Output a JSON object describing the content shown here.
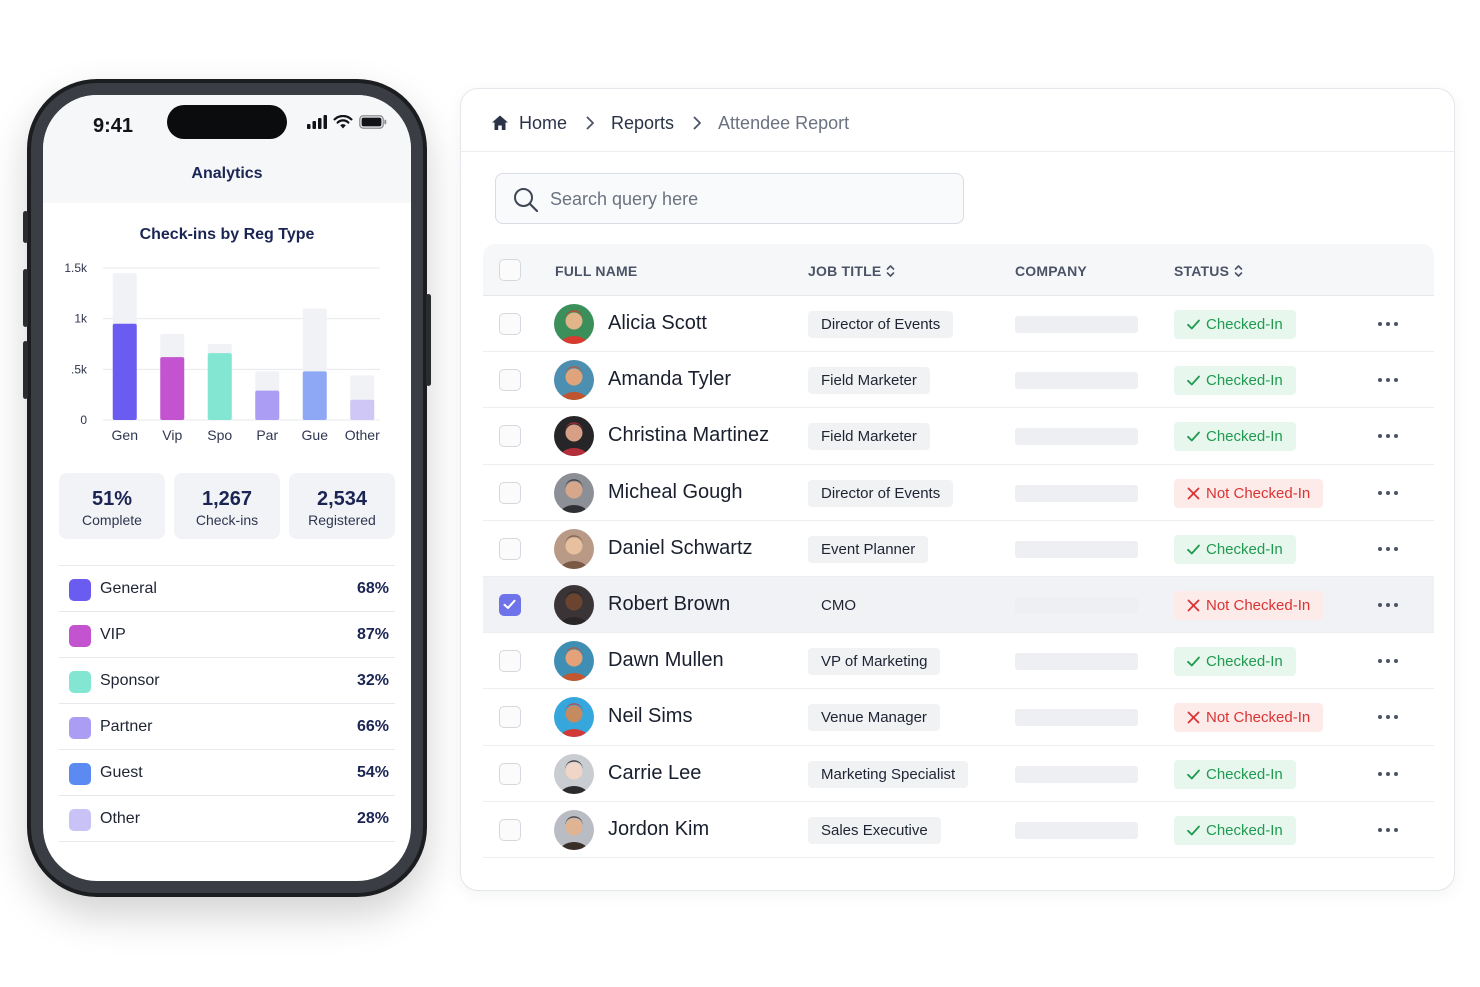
{
  "phone": {
    "status_bar": {
      "time": "9:41",
      "icons": [
        "cellular-signal-icon",
        "wifi-icon",
        "battery-icon"
      ]
    },
    "header_title": "Analytics",
    "chart_data": {
      "type": "bar",
      "title": "Check-ins by Reg Type",
      "categories": [
        "Gen",
        "Vip",
        "Spo",
        "Par",
        "Gue",
        "Other"
      ],
      "y_tick_labels": [
        "0",
        ".5k",
        "1k",
        "1.5k"
      ],
      "ylim": [
        0,
        1500
      ],
      "series": [
        {
          "values": [
            950,
            620,
            660,
            290,
            480,
            200
          ]
        },
        {
          "values": [
            1450,
            850,
            750,
            480,
            1100,
            440
          ]
        }
      ],
      "bar_colors": [
        "#6a5cf0",
        "#c453cf",
        "#82e6d3",
        "#ab9df3",
        "#8ea8f5",
        "#cfc8f7"
      ],
      "grid": true,
      "legend": "none"
    },
    "stats": [
      {
        "value": "51%",
        "label": "Complete"
      },
      {
        "value": "1,267",
        "label": "Check-ins"
      },
      {
        "value": "2,534",
        "label": "Registered"
      }
    ],
    "reg_types": [
      {
        "name": "General",
        "pct": "68%",
        "color": "#6a5cf0"
      },
      {
        "name": "VIP",
        "pct": "87%",
        "color": "#c453cf"
      },
      {
        "name": "Sponsor",
        "pct": "32%",
        "color": "#82e6d3"
      },
      {
        "name": "Partner",
        "pct": "66%",
        "color": "#ab9df3"
      },
      {
        "name": "Guest",
        "pct": "54%",
        "color": "#5b8bf2"
      },
      {
        "name": "Other",
        "pct": "28%",
        "color": "#c9c2f6"
      }
    ]
  },
  "report": {
    "breadcrumb": {
      "home": "Home",
      "reports": "Reports",
      "current": "Attendee Report"
    },
    "search": {
      "placeholder": "Search query here",
      "value": ""
    },
    "columns": {
      "name": "FULL NAME",
      "job": "JOB TITLE",
      "company": "COMPANY",
      "status": "STATUS"
    },
    "status_labels": {
      "in": "Checked-In",
      "out": "Not Checked-In"
    },
    "rows": [
      {
        "name": "Alicia Scott",
        "job": "Director of Events",
        "status": "in",
        "checked": false,
        "avatar_colors": [
          "#3a8f5a",
          "#e2b48a",
          "#d93a2f"
        ]
      },
      {
        "name": "Amanda Tyler",
        "job": "Field Marketer",
        "status": "in",
        "checked": false,
        "avatar_colors": [
          "#4c8fb0",
          "#e0a47c",
          "#c0542e"
        ]
      },
      {
        "name": "Christina Martinez",
        "job": "Field Marketer",
        "status": "in",
        "checked": false,
        "avatar_colors": [
          "#262629",
          "#d7a086",
          "#b52f3a"
        ]
      },
      {
        "name": "Micheal Gough",
        "job": "Director of Events",
        "status": "out",
        "checked": false,
        "avatar_colors": [
          "#8d8f96",
          "#d6a78a",
          "#2e3035"
        ]
      },
      {
        "name": "Daniel Schwartz",
        "job": "Event Planner",
        "status": "in",
        "checked": false,
        "avatar_colors": [
          "#b89a86",
          "#e7c0a0",
          "#7a5a44"
        ]
      },
      {
        "name": "Robert Brown",
        "job": "CMO",
        "status": "out",
        "checked": true,
        "avatar_colors": [
          "#3a3436",
          "#6b4430",
          "#2a2527"
        ]
      },
      {
        "name": "Dawn Mullen",
        "job": "VP of Marketing",
        "status": "in",
        "checked": false,
        "avatar_colors": [
          "#3f8fb5",
          "#e5a178",
          "#c2562f"
        ]
      },
      {
        "name": "Neil Sims",
        "job": "Venue Manager",
        "status": "out",
        "checked": false,
        "avatar_colors": [
          "#35a7dc",
          "#c58a60",
          "#d23a3a"
        ]
      },
      {
        "name": "Carrie Lee",
        "job": "Marketing Specialist",
        "status": "in",
        "checked": false,
        "avatar_colors": [
          "#c9ccd1",
          "#f0d6c6",
          "#2b2b2e"
        ]
      },
      {
        "name": "Jordon Kim",
        "job": "Sales Executive",
        "status": "in",
        "checked": false,
        "avatar_colors": [
          "#b9bcc2",
          "#e0b393",
          "#3a2e28"
        ]
      }
    ]
  }
}
